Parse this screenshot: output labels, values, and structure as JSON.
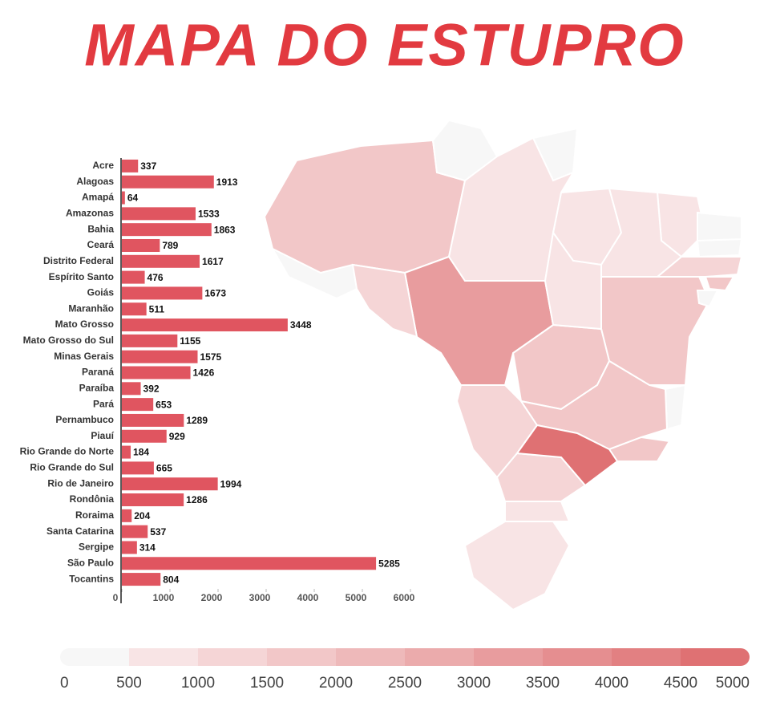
{
  "chart_data": {
    "type": "bar",
    "orientation": "horizontal",
    "title": "MAPA DO ESTUPRO",
    "categories": [
      "Acre",
      "Alagoas",
      "Amapá",
      "Amazonas",
      "Bahia",
      "Ceará",
      "Distrito Federal",
      "Espírito Santo",
      "Goiás",
      "Maranhão",
      "Mato Grosso",
      "Mato Grosso do Sul",
      "Minas Gerais",
      "Paraná",
      "Paraíba",
      "Pará",
      "Pernambuco",
      "Piauí",
      "Rio Grande do Norte",
      "Rio Grande do Sul",
      "Rio de Janeiro",
      "Rondônia",
      "Roraima",
      "Santa Catarina",
      "Sergipe",
      "São Paulo",
      "Tocantins"
    ],
    "values": [
      337,
      1913,
      64,
      1533,
      1863,
      789,
      1617,
      476,
      1673,
      511,
      3448,
      1155,
      1575,
      1426,
      392,
      653,
      1289,
      929,
      184,
      665,
      1994,
      1286,
      204,
      537,
      314,
      5285,
      804
    ],
    "color": "#e05560",
    "xlim": [
      0,
      6000
    ],
    "xticks": [
      0,
      1000,
      2000,
      3000,
      4000,
      5000,
      6000
    ],
    "legend": {
      "ticks": [
        0,
        500,
        1000,
        1500,
        2000,
        2500,
        3000,
        3500,
        4000,
        4500,
        5000
      ],
      "colors": [
        "#f7f7f7",
        "#f8e4e5",
        "#f5d5d6",
        "#f2c7c8",
        "#eeb9ba",
        "#ebabac",
        "#e89c9e",
        "#e58e90",
        "#e28082",
        "#df7173"
      ]
    }
  }
}
